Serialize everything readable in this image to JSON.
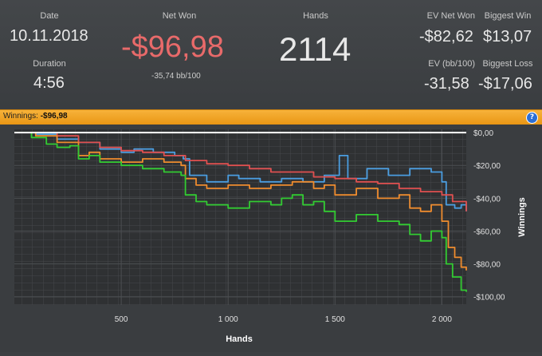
{
  "stats": {
    "date_label": "Date",
    "date_value": "10.11.2018",
    "duration_label": "Duration",
    "duration_value": "4:56",
    "net_won_label": "Net Won",
    "net_won_value": "-$96,98",
    "bb_per_100": "-35,74 bb/100",
    "hands_label": "Hands",
    "hands_value": "2114",
    "ev_net_won_label": "EV Net Won",
    "ev_net_won_value": "-$82,62",
    "biggest_win_label": "Biggest Win",
    "biggest_win_value": "$13,07",
    "ev_bb_label": "EV (bb/100)",
    "ev_bb_value": "-31,58",
    "biggest_loss_label": "Biggest Loss",
    "biggest_loss_value": "-$17,06",
    "net_won_color": "#e86a6a"
  },
  "winnings_bar": {
    "label": "Winnings:",
    "value": "-$96,98",
    "help_icon": "?"
  },
  "chart_data": {
    "type": "line",
    "xlabel": "Hands",
    "ylabel": "Winnings",
    "xlim": [
      0,
      2114
    ],
    "ylim": [
      -105,
      2
    ],
    "x_ticks": [
      500,
      1000,
      1500,
      2000
    ],
    "x_tick_labels": [
      "500",
      "1 000",
      "1 500",
      "2 000"
    ],
    "y_ticks": [
      0,
      -20,
      -40,
      -60,
      -80,
      -100
    ],
    "y_tick_labels": [
      "$0,00",
      "-$20,00",
      "-$40,00",
      "-$60,00",
      "-$80,00",
      "-$100,00"
    ],
    "grid": true,
    "series": [
      {
        "color": "#4a9de0",
        "points": [
          [
            0,
            0
          ],
          [
            100,
            -1
          ],
          [
            200,
            -4
          ],
          [
            300,
            -6
          ],
          [
            400,
            -10
          ],
          [
            500,
            -12
          ],
          [
            560,
            -10
          ],
          [
            650,
            -12
          ],
          [
            750,
            -14
          ],
          [
            790,
            -16
          ],
          [
            820,
            -26
          ],
          [
            900,
            -30
          ],
          [
            1000,
            -26
          ],
          [
            1050,
            -28
          ],
          [
            1150,
            -30
          ],
          [
            1250,
            -28
          ],
          [
            1350,
            -30
          ],
          [
            1450,
            -26
          ],
          [
            1520,
            -14
          ],
          [
            1560,
            -28
          ],
          [
            1650,
            -22
          ],
          [
            1750,
            -26
          ],
          [
            1850,
            -22
          ],
          [
            1950,
            -24
          ],
          [
            2000,
            -30
          ],
          [
            2020,
            -44
          ],
          [
            2060,
            -46
          ],
          [
            2090,
            -44
          ],
          [
            2114,
            -48
          ]
        ]
      },
      {
        "color": "#e05050",
        "points": [
          [
            0,
            0
          ],
          [
            150,
            0
          ],
          [
            200,
            -2
          ],
          [
            300,
            -6
          ],
          [
            400,
            -9
          ],
          [
            500,
            -11
          ],
          [
            600,
            -12
          ],
          [
            700,
            -14
          ],
          [
            800,
            -17
          ],
          [
            900,
            -19
          ],
          [
            1000,
            -20
          ],
          [
            1100,
            -22
          ],
          [
            1200,
            -24
          ],
          [
            1300,
            -24
          ],
          [
            1400,
            -27
          ],
          [
            1500,
            -28
          ],
          [
            1600,
            -30
          ],
          [
            1700,
            -31
          ],
          [
            1800,
            -34
          ],
          [
            1900,
            -36
          ],
          [
            2000,
            -38
          ],
          [
            2050,
            -42
          ],
          [
            2114,
            -48
          ]
        ]
      },
      {
        "color": "#ef8c2e",
        "points": [
          [
            0,
            0
          ],
          [
            100,
            -2
          ],
          [
            200,
            -6
          ],
          [
            300,
            -14
          ],
          [
            350,
            -12
          ],
          [
            400,
            -16
          ],
          [
            500,
            -18
          ],
          [
            600,
            -16
          ],
          [
            700,
            -18
          ],
          [
            780,
            -20
          ],
          [
            800,
            -28
          ],
          [
            850,
            -32
          ],
          [
            900,
            -34
          ],
          [
            1000,
            -32
          ],
          [
            1100,
            -34
          ],
          [
            1200,
            -32
          ],
          [
            1300,
            -30
          ],
          [
            1400,
            -34
          ],
          [
            1450,
            -32
          ],
          [
            1500,
            -38
          ],
          [
            1600,
            -34
          ],
          [
            1700,
            -40
          ],
          [
            1800,
            -38
          ],
          [
            1850,
            -46
          ],
          [
            1900,
            -48
          ],
          [
            1950,
            -44
          ],
          [
            2000,
            -54
          ],
          [
            2030,
            -70
          ],
          [
            2060,
            -76
          ],
          [
            2090,
            -82
          ],
          [
            2114,
            -84
          ]
        ]
      },
      {
        "color": "#32cc32",
        "points": [
          [
            0,
            0
          ],
          [
            80,
            -3
          ],
          [
            150,
            -7
          ],
          [
            200,
            -9
          ],
          [
            260,
            -8
          ],
          [
            300,
            -16
          ],
          [
            350,
            -14
          ],
          [
            400,
            -18
          ],
          [
            500,
            -20
          ],
          [
            600,
            -22
          ],
          [
            700,
            -24
          ],
          [
            780,
            -26
          ],
          [
            800,
            -38
          ],
          [
            850,
            -42
          ],
          [
            900,
            -44
          ],
          [
            1000,
            -46
          ],
          [
            1100,
            -42
          ],
          [
            1200,
            -44
          ],
          [
            1250,
            -40
          ],
          [
            1300,
            -38
          ],
          [
            1350,
            -44
          ],
          [
            1400,
            -42
          ],
          [
            1450,
            -48
          ],
          [
            1500,
            -54
          ],
          [
            1600,
            -50
          ],
          [
            1700,
            -54
          ],
          [
            1800,
            -56
          ],
          [
            1850,
            -62
          ],
          [
            1900,
            -66
          ],
          [
            1950,
            -60
          ],
          [
            2000,
            -64
          ],
          [
            2020,
            -80
          ],
          [
            2050,
            -88
          ],
          [
            2090,
            -96
          ],
          [
            2114,
            -97
          ]
        ]
      }
    ]
  }
}
